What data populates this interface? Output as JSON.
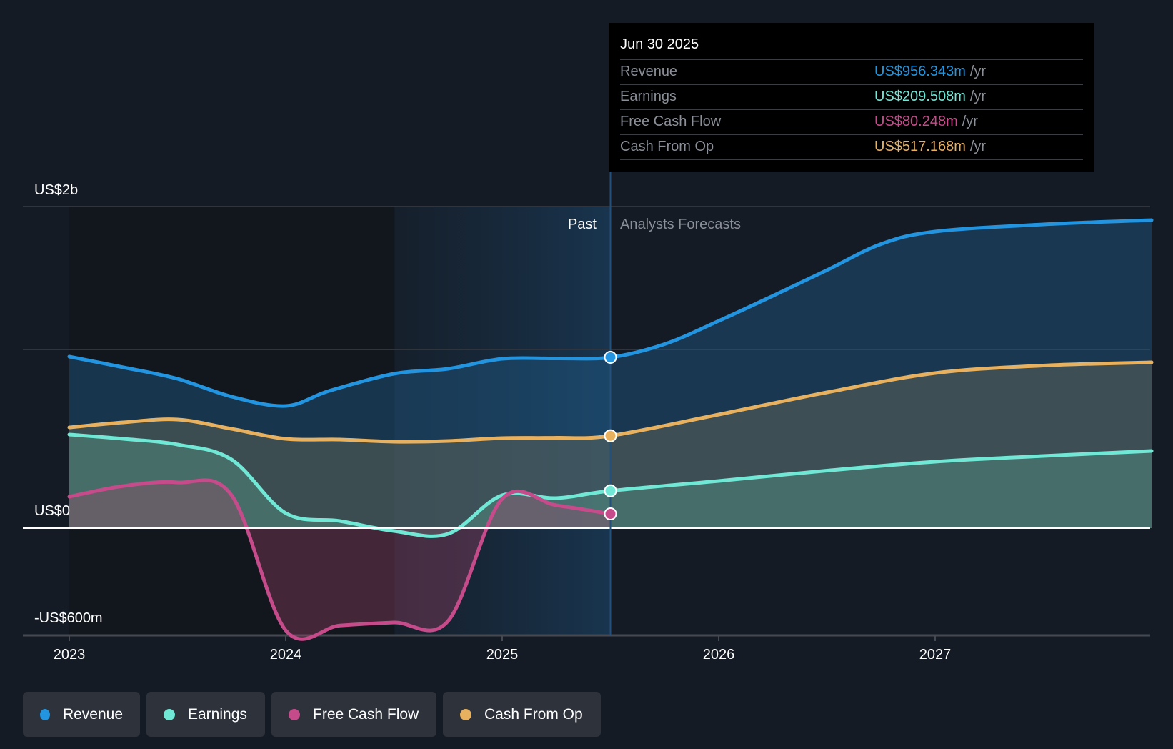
{
  "chart_data": {
    "type": "area",
    "title": "",
    "xlabel": "",
    "ylabel": "",
    "x_ticks": [
      "2023",
      "2024",
      "2025",
      "2026",
      "2027"
    ],
    "x_range": [
      2023.0,
      2028.0
    ],
    "y_tick_labels": [
      {
        "value": 1800,
        "label": "US$2b"
      },
      {
        "value": 0,
        "label": "US$0"
      },
      {
        "value": -600,
        "label": "-US$600m"
      }
    ],
    "y_gridlines": [
      1800,
      1000,
      0,
      -600
    ],
    "ylim": [
      -600,
      1800
    ],
    "units": "US$ millions per year",
    "past_label": "Past",
    "forecast_label": "Analysts Forecasts",
    "highlight_start": 2024.5,
    "divider": 2025.5,
    "series": [
      {
        "name": "Revenue",
        "color": "#2394df",
        "points": [
          [
            2023.0,
            960
          ],
          [
            2023.25,
            900
          ],
          [
            2023.5,
            836
          ],
          [
            2023.75,
            736
          ],
          [
            2024.0,
            684
          ],
          [
            2024.2,
            768
          ],
          [
            2024.5,
            864
          ],
          [
            2024.75,
            892
          ],
          [
            2025.0,
            948
          ],
          [
            2025.25,
            950
          ],
          [
            2025.5,
            956
          ],
          [
            2025.75,
            1030
          ],
          [
            2026.0,
            1160
          ],
          [
            2026.25,
            1300
          ],
          [
            2026.5,
            1444
          ],
          [
            2026.75,
            1590
          ],
          [
            2027.0,
            1660
          ],
          [
            2027.5,
            1700
          ],
          [
            2028.0,
            1724
          ]
        ]
      },
      {
        "name": "Earnings",
        "color": "#71e7d6",
        "points": [
          [
            2023.0,
            524
          ],
          [
            2023.25,
            500
          ],
          [
            2023.5,
            468
          ],
          [
            2023.75,
            384
          ],
          [
            2024.0,
            84
          ],
          [
            2024.25,
            40
          ],
          [
            2024.5,
            -16
          ],
          [
            2024.75,
            -32
          ],
          [
            2025.0,
            184
          ],
          [
            2025.25,
            168
          ],
          [
            2025.5,
            209
          ],
          [
            2026.0,
            264
          ],
          [
            2026.5,
            322
          ],
          [
            2027.0,
            372
          ],
          [
            2027.5,
            404
          ],
          [
            2028.0,
            432
          ]
        ]
      },
      {
        "name": "Free Cash Flow",
        "color": "#c64b8b",
        "points": [
          [
            2023.0,
            176
          ],
          [
            2023.25,
            236
          ],
          [
            2023.5,
            256
          ],
          [
            2023.75,
            184
          ],
          [
            2024.0,
            -572
          ],
          [
            2024.25,
            -545
          ],
          [
            2024.5,
            -528
          ],
          [
            2024.75,
            -520
          ],
          [
            2025.0,
            164
          ],
          [
            2025.25,
            128
          ],
          [
            2025.5,
            80
          ]
        ]
      },
      {
        "name": "Cash From Op",
        "color": "#e8b160",
        "points": [
          [
            2023.0,
            564
          ],
          [
            2023.25,
            592
          ],
          [
            2023.5,
            608
          ],
          [
            2023.75,
            556
          ],
          [
            2024.0,
            500
          ],
          [
            2024.25,
            496
          ],
          [
            2024.5,
            484
          ],
          [
            2024.75,
            488
          ],
          [
            2025.0,
            504
          ],
          [
            2025.25,
            506
          ],
          [
            2025.5,
            517
          ],
          [
            2026.0,
            636
          ],
          [
            2026.5,
            760
          ],
          [
            2027.0,
            868
          ],
          [
            2027.5,
            910
          ],
          [
            2028.0,
            928
          ]
        ]
      }
    ]
  },
  "tooltip": {
    "date": "Jun 30 2025",
    "rows": [
      {
        "name": "Revenue",
        "value": "US$956.343m",
        "unit": "/yr",
        "color": "#2394df"
      },
      {
        "name": "Earnings",
        "value": "US$209.508m",
        "unit": "/yr",
        "color": "#71e7d6"
      },
      {
        "name": "Free Cash Flow",
        "value": "US$80.248m",
        "unit": "/yr",
        "color": "#c64b8b"
      },
      {
        "name": "Cash From Op",
        "value": "US$517.168m",
        "unit": "/yr",
        "color": "#e8b160"
      }
    ]
  },
  "legend": [
    {
      "label": "Revenue",
      "color": "#2394df"
    },
    {
      "label": "Earnings",
      "color": "#71e7d6"
    },
    {
      "label": "Free Cash Flow",
      "color": "#c64b8b"
    },
    {
      "label": "Cash From Op",
      "color": "#e8b160"
    }
  ]
}
